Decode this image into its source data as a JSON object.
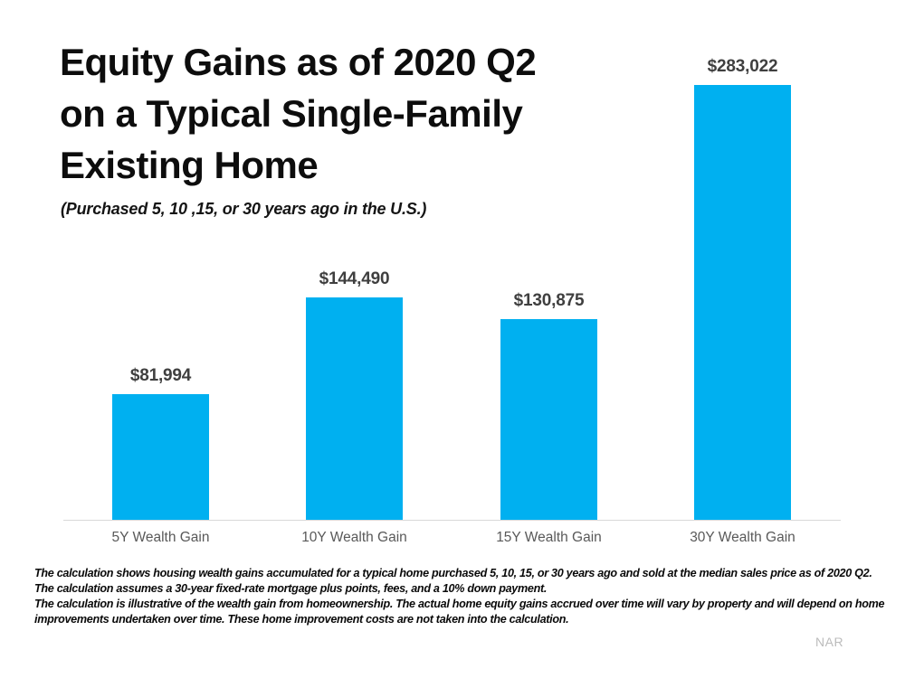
{
  "header": {
    "title": "Equity Gains as of 2020 Q2\non a Typical Single-Family\nExisting Home",
    "subtitle": "(Purchased 5, 10 ,15, or 30 years ago in the U.S.)"
  },
  "chart_data": {
    "type": "bar",
    "title": "Equity Gains as of 2020 Q2 on a Typical Single-Family Existing Home",
    "subtitle": "(Purchased 5, 10 ,15, or 30 years ago in the U.S.)",
    "categories": [
      "5Y Wealth Gain",
      "10Y Wealth Gain",
      "15Y Wealth Gain",
      "30Y Wealth Gain"
    ],
    "values": [
      81994,
      144490,
      130875,
      283022
    ],
    "value_labels": [
      "$81,994",
      "$144,490",
      "$130,875",
      "$283,022"
    ],
    "xlabel": "",
    "ylabel": "",
    "ylim": [
      0,
      300000
    ],
    "grid": false,
    "legend": false,
    "bar_color": "#00B0F0",
    "axis_line_color": "#d9d9d9",
    "value_label_color": "#3f3f3f",
    "category_label_color": "#595959"
  },
  "footnote": {
    "lines": [
      "The calculation shows housing wealth gains accumulated for a typical home purchased 5, 10, 15, or 30 years ago and sold at the median sales price as of 2020 Q2.",
      "The calculation assumes a 30-year fixed-rate mortgage plus points, fees, and a 10% down payment.",
      "The calculation is illustrative of the wealth gain from homeownership. The actual home equity gains accrued over time will vary by property and will depend on home",
      "improvements undertaken over time. These home improvement costs are not taken into the calculation."
    ]
  },
  "attribution": "NAR"
}
